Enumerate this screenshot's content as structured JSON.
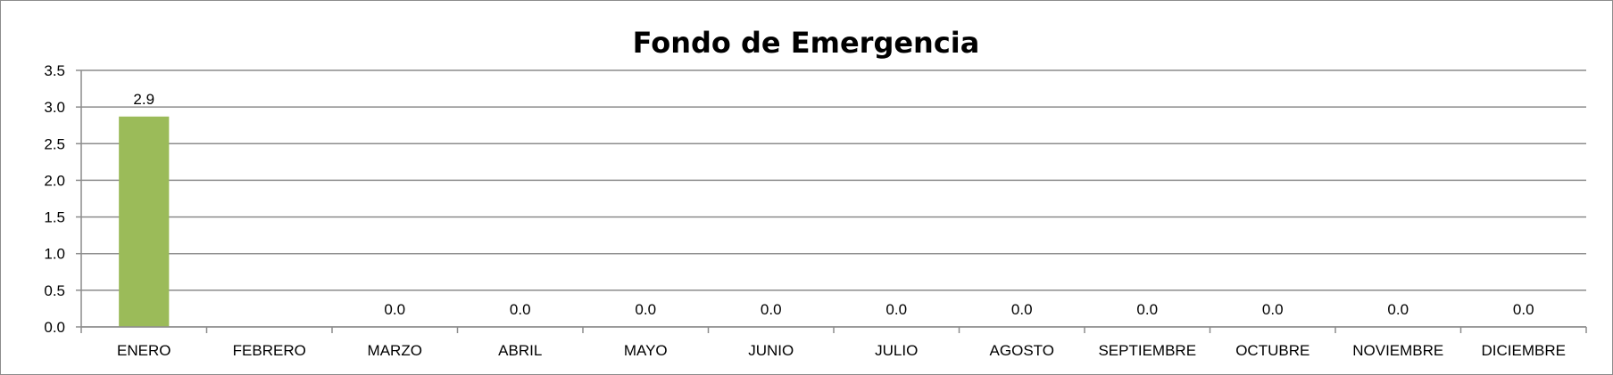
{
  "chart_data": {
    "type": "bar",
    "title": "Fondo de Emergencia",
    "xlabel": "",
    "ylabel": "",
    "ylim": [
      0,
      3.5
    ],
    "yticks": [
      "0.0",
      "0.5",
      "1.0",
      "1.5",
      "2.0",
      "2.5",
      "3.0",
      "3.5"
    ],
    "categories": [
      "ENERO",
      "FEBRERO",
      "MARZO",
      "ABRIL",
      "MAYO",
      "JUNIO",
      "JULIO",
      "AGOSTO",
      "SEPTIEMBRE",
      "OCTUBRE",
      "NOVIEMBRE",
      "DICIEMBRE"
    ],
    "values": [
      2.87,
      null,
      0,
      0,
      0,
      0,
      0,
      0,
      0,
      0,
      0,
      0
    ],
    "data_labels": [
      "2.9",
      "",
      "0.0",
      "0.0",
      "0.0",
      "0.0",
      "0.0",
      "0.0",
      "0.0",
      "0.0",
      "0.0",
      "0.0"
    ],
    "bar_color": "#9bbb59",
    "grid": true,
    "legend": "none"
  }
}
